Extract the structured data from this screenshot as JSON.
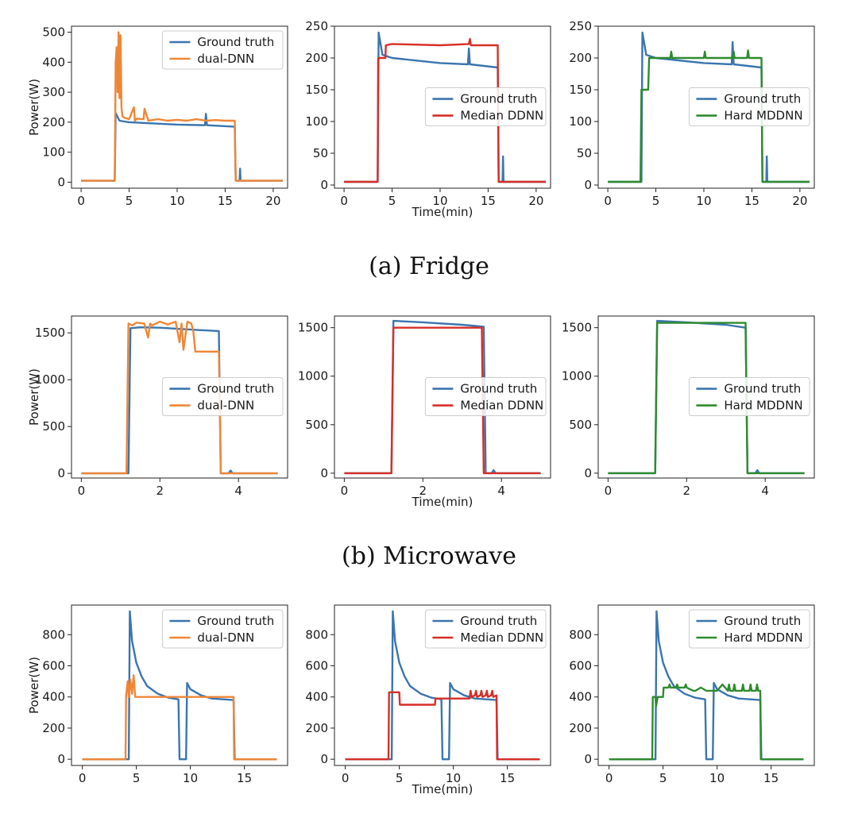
{
  "colors": {
    "ground_truth": "#3b75af",
    "dual_dnn": "#ef8636",
    "median_ddnn": "#d62f27",
    "hard_mddnn": "#2e8b2e"
  },
  "rows": [
    {
      "caption": "(a)  Fridge"
    },
    {
      "caption": "(b)  Microwave"
    },
    {
      "caption": ""
    }
  ],
  "chart_data": [
    {
      "type": "line",
      "row": 0,
      "col": 0,
      "ylabel": "Power(W)",
      "xlabel": "",
      "xlim": [
        -1,
        21.5
      ],
      "ylim": [
        -20,
        520
      ],
      "xticks": [
        "0",
        "5",
        "10",
        "15",
        "20"
      ],
      "yticks": [
        "0",
        "100",
        "200",
        "300",
        "400",
        "500"
      ],
      "legend": "top-right",
      "series": [
        {
          "name": "Ground truth",
          "color": "#3b75af",
          "x": [
            0,
            3.5,
            3.6,
            4,
            5,
            10,
            12.9,
            13,
            13.1,
            16,
            16.1,
            16.5,
            16.55,
            16.6,
            21
          ],
          "y": [
            5,
            5,
            230,
            205,
            200,
            192,
            190,
            228,
            190,
            185,
            5,
            5,
            45,
            5,
            5
          ]
        },
        {
          "name": "dual-DNN",
          "color": "#ef8636",
          "x": [
            0,
            3.5,
            3.6,
            3.7,
            3.8,
            3.9,
            4.0,
            4.1,
            4.2,
            4.3,
            4.5,
            5,
            5.5,
            5.6,
            5.8,
            6.5,
            6.6,
            7,
            8,
            9,
            10,
            11,
            12,
            13,
            14,
            15,
            16,
            16.1,
            21
          ],
          "y": [
            5,
            5,
            400,
            450,
            300,
            500,
            280,
            490,
            250,
            220,
            215,
            210,
            250,
            205,
            212,
            210,
            245,
            205,
            210,
            205,
            208,
            205,
            210,
            205,
            207,
            205,
            205,
            5,
            5
          ]
        }
      ]
    },
    {
      "type": "line",
      "row": 0,
      "col": 1,
      "ylabel": "",
      "xlabel": "Time(min)",
      "xlim": [
        -1,
        21.5
      ],
      "ylim": [
        -5,
        250
      ],
      "xticks": [
        "0",
        "5",
        "10",
        "15",
        "20"
      ],
      "yticks": [
        "0",
        "50",
        "100",
        "150",
        "200",
        "250"
      ],
      "legend": "center-right",
      "series": [
        {
          "name": "Ground truth",
          "color": "#3b75af",
          "x": [
            0,
            3.5,
            3.6,
            4,
            5,
            10,
            12.9,
            13,
            13.1,
            16,
            16.1,
            16.5,
            16.55,
            16.6,
            21
          ],
          "y": [
            5,
            5,
            240,
            205,
            200,
            192,
            190,
            215,
            190,
            185,
            5,
            5,
            45,
            5,
            5
          ]
        },
        {
          "name": "Median DDNN",
          "color": "#d62f27",
          "x": [
            0,
            3.5,
            3.55,
            4.3,
            4.35,
            5,
            10,
            13,
            13.1,
            13.2,
            16,
            16.1,
            21
          ],
          "y": [
            5,
            5,
            200,
            200,
            220,
            222,
            220,
            222,
            230,
            220,
            220,
            5,
            5
          ]
        }
      ]
    },
    {
      "type": "line",
      "row": 0,
      "col": 2,
      "ylabel": "",
      "xlabel": "",
      "xlim": [
        -1,
        21.5
      ],
      "ylim": [
        -5,
        250
      ],
      "xticks": [
        "0",
        "5",
        "10",
        "15",
        "20"
      ],
      "yticks": [
        "0",
        "50",
        "100",
        "150",
        "200",
        "250"
      ],
      "legend": "center-right",
      "series": [
        {
          "name": "Ground truth",
          "color": "#3b75af",
          "x": [
            0,
            3.5,
            3.6,
            4,
            5,
            10,
            12.9,
            13,
            13.1,
            16,
            16.1,
            16.5,
            16.55,
            16.6,
            21
          ],
          "y": [
            5,
            5,
            240,
            205,
            200,
            192,
            190,
            225,
            190,
            185,
            5,
            5,
            45,
            5,
            5
          ]
        },
        {
          "name": "Hard MDDNN",
          "color": "#2e8b2e",
          "x": [
            0,
            3.4,
            3.5,
            4.2,
            4.3,
            6.5,
            6.6,
            6.7,
            10,
            10.1,
            10.2,
            13,
            13.1,
            13.2,
            14.5,
            14.6,
            14.7,
            16,
            16.1,
            21
          ],
          "y": [
            5,
            5,
            150,
            150,
            200,
            200,
            210,
            200,
            200,
            210,
            200,
            200,
            210,
            200,
            200,
            212,
            200,
            200,
            5,
            5
          ]
        }
      ]
    },
    {
      "type": "line",
      "row": 1,
      "col": 0,
      "ylabel": "Power(W)",
      "xlabel": "",
      "xlim": [
        -0.25,
        5.25
      ],
      "ylim": [
        -50,
        1680
      ],
      "xticks": [
        "0",
        "2",
        "4"
      ],
      "yticks": [
        "0",
        "500",
        "1000",
        "1500"
      ],
      "legend": "center-right",
      "series": [
        {
          "name": "Ground truth",
          "color": "#3b75af",
          "x": [
            0,
            1.2,
            1.25,
            1.5,
            2,
            3,
            3.5,
            3.55,
            3.75,
            3.8,
            3.85,
            5
          ],
          "y": [
            0,
            0,
            1550,
            1560,
            1555,
            1530,
            1520,
            0,
            0,
            30,
            0,
            0
          ]
        },
        {
          "name": "dual-DNN",
          "color": "#ef8636",
          "x": [
            0,
            1.15,
            1.2,
            1.3,
            1.4,
            1.6,
            1.7,
            1.75,
            1.8,
            2,
            2.2,
            2.4,
            2.5,
            2.55,
            2.6,
            2.7,
            2.8,
            2.85,
            2.9,
            3.5,
            3.55,
            5
          ],
          "y": [
            0,
            0,
            1600,
            1580,
            1610,
            1600,
            1450,
            1600,
            1580,
            1620,
            1590,
            1620,
            1400,
            1600,
            1320,
            1620,
            1600,
            1520,
            1300,
            1300,
            0,
            0
          ]
        }
      ]
    },
    {
      "type": "line",
      "row": 1,
      "col": 1,
      "ylabel": "",
      "xlabel": "Time(min)",
      "xlim": [
        -0.25,
        5.25
      ],
      "ylim": [
        -50,
        1620
      ],
      "xticks": [
        "0",
        "2",
        "4"
      ],
      "yticks": [
        "0",
        "500",
        "1000",
        "1500"
      ],
      "legend": "center-right",
      "series": [
        {
          "name": "Ground truth",
          "color": "#3b75af",
          "x": [
            0,
            1.2,
            1.25,
            1.5,
            2,
            3,
            3.55,
            3.6,
            3.75,
            3.8,
            3.85,
            5
          ],
          "y": [
            0,
            0,
            1570,
            1565,
            1555,
            1530,
            1510,
            0,
            0,
            30,
            0,
            0
          ]
        },
        {
          "name": "Median DDNN",
          "color": "#d62f27",
          "x": [
            0,
            1.2,
            1.25,
            3.5,
            3.55,
            5
          ],
          "y": [
            0,
            0,
            1500,
            1500,
            0,
            0
          ]
        }
      ]
    },
    {
      "type": "line",
      "row": 1,
      "col": 2,
      "ylabel": "",
      "xlabel": "",
      "xlim": [
        -0.25,
        5.25
      ],
      "ylim": [
        -50,
        1620
      ],
      "xticks": [
        "0",
        "2",
        "4"
      ],
      "yticks": [
        "0",
        "500",
        "1000",
        "1500"
      ],
      "legend": "center-right",
      "series": [
        {
          "name": "Ground truth",
          "color": "#3b75af",
          "x": [
            0,
            1.2,
            1.25,
            1.5,
            2,
            3,
            3.5,
            3.55,
            3.75,
            3.8,
            3.85,
            5
          ],
          "y": [
            0,
            0,
            1570,
            1565,
            1555,
            1530,
            1500,
            0,
            0,
            30,
            0,
            0
          ]
        },
        {
          "name": "Hard MDDNN",
          "color": "#2e8b2e",
          "x": [
            0,
            1.2,
            1.25,
            3.5,
            3.55,
            5
          ],
          "y": [
            0,
            0,
            1550,
            1550,
            0,
            0
          ]
        }
      ]
    },
    {
      "type": "line",
      "row": 2,
      "col": 0,
      "ylabel": "Power(W)",
      "xlabel": "",
      "xlim": [
        -1,
        19
      ],
      "ylim": [
        -40,
        990
      ],
      "xticks": [
        "0",
        "5",
        "10",
        "15"
      ],
      "yticks": [
        "0",
        "200",
        "400",
        "600",
        "800"
      ],
      "legend": "top-right",
      "series": [
        {
          "name": "Ground truth",
          "color": "#3b75af",
          "x": [
            0,
            4.3,
            4.4,
            4.6,
            5,
            5.5,
            6,
            7,
            8,
            8.9,
            9.0,
            9.6,
            9.7,
            10,
            11,
            12,
            14,
            14.1,
            18
          ],
          "y": [
            0,
            0,
            950,
            760,
            620,
            530,
            470,
            420,
            395,
            385,
            0,
            0,
            490,
            450,
            410,
            390,
            380,
            0,
            0
          ]
        },
        {
          "name": "dual-DNN",
          "color": "#ef8636",
          "x": [
            0,
            4.0,
            4.05,
            4.2,
            4.3,
            4.45,
            4.6,
            4.75,
            4.9,
            5.0,
            14,
            14.05,
            18
          ],
          "y": [
            0,
            0,
            410,
            500,
            400,
            510,
            420,
            540,
            400,
            400,
            400,
            0,
            0
          ]
        }
      ]
    },
    {
      "type": "line",
      "row": 2,
      "col": 1,
      "ylabel": "",
      "xlabel": "Time(min)",
      "xlim": [
        -1,
        19
      ],
      "ylim": [
        -40,
        990
      ],
      "xticks": [
        "0",
        "5",
        "10",
        "15"
      ],
      "yticks": [
        "0",
        "200",
        "400",
        "600",
        "800"
      ],
      "legend": "top-right",
      "series": [
        {
          "name": "Ground truth",
          "color": "#3b75af",
          "x": [
            0,
            4.3,
            4.4,
            4.6,
            5,
            5.5,
            6,
            7,
            8,
            8.9,
            9.0,
            9.6,
            9.7,
            10,
            11,
            12,
            14,
            14.1,
            18
          ],
          "y": [
            0,
            0,
            950,
            760,
            620,
            530,
            470,
            420,
            395,
            385,
            0,
            0,
            490,
            450,
            410,
            390,
            380,
            0,
            0
          ]
        },
        {
          "name": "Median DDNN",
          "color": "#d62f27",
          "x": [
            0,
            4.0,
            4.05,
            5.0,
            5.05,
            8.3,
            8.35,
            11.5,
            11.6,
            11.7,
            12,
            12.1,
            12.2,
            12.5,
            12.6,
            12.7,
            13,
            13.1,
            13.2,
            13.5,
            13.6,
            13.7,
            14,
            14.05,
            18
          ],
          "y": [
            0,
            0,
            430,
            430,
            350,
            350,
            390,
            390,
            440,
            400,
            410,
            440,
            400,
            410,
            440,
            400,
            410,
            440,
            400,
            410,
            440,
            400,
            410,
            0,
            0
          ]
        }
      ]
    },
    {
      "type": "line",
      "row": 2,
      "col": 2,
      "ylabel": "",
      "xlabel": "",
      "xlim": [
        -1,
        19
      ],
      "ylim": [
        -40,
        990
      ],
      "xticks": [
        "0",
        "5",
        "10",
        "15"
      ],
      "yticks": [
        "0",
        "200",
        "400",
        "600",
        "800"
      ],
      "legend": "top-right",
      "series": [
        {
          "name": "Ground truth",
          "color": "#3b75af",
          "x": [
            0,
            4.3,
            4.4,
            4.6,
            5,
            5.5,
            6,
            7,
            8,
            8.9,
            9.0,
            9.6,
            9.7,
            10,
            11,
            12,
            14,
            14.1,
            18
          ],
          "y": [
            0,
            0,
            950,
            760,
            620,
            530,
            470,
            420,
            395,
            385,
            0,
            0,
            490,
            450,
            410,
            390,
            380,
            0,
            0
          ]
        },
        {
          "name": "Hard MDDNN",
          "color": "#2e8b2e",
          "x": [
            0,
            4.0,
            4.05,
            4.3,
            4.35,
            4.5,
            5.0,
            5.05,
            5.5,
            5.6,
            5.7,
            6.2,
            6.3,
            6.4,
            7,
            7.1,
            7.2,
            7.8,
            8,
            8.5,
            9,
            10,
            10.5,
            11,
            11.1,
            11.2,
            11.5,
            11.6,
            11.7,
            12.3,
            12.4,
            12.5,
            13,
            13.1,
            13.2,
            13.6,
            13.7,
            13.8,
            14,
            14.05,
            18
          ],
          "y": [
            0,
            0,
            400,
            400,
            340,
            400,
            400,
            460,
            460,
            480,
            460,
            460,
            480,
            460,
            460,
            480,
            460,
            440,
            440,
            460,
            440,
            440,
            480,
            440,
            480,
            440,
            440,
            480,
            440,
            440,
            480,
            440,
            440,
            480,
            440,
            440,
            480,
            440,
            440,
            0,
            0
          ]
        }
      ]
    }
  ]
}
